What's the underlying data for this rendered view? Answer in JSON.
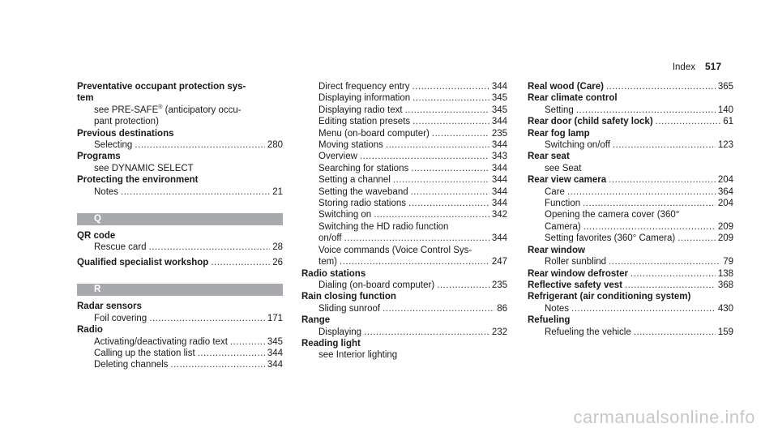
{
  "header": {
    "title": "Index",
    "page": "517"
  },
  "col1": {
    "pre1_a": "Preventative occupant protection sys-",
    "pre1_b": "tem",
    "pre1_s1": "see PRE-SAFE",
    "pre1_s1_reg": "®",
    "pre1_s1b": " (anticipatory occu-",
    "pre1_s2": "pant protection)",
    "prev_dest": "Previous destinations",
    "prev_sel": "Selecting",
    "prev_sel_p": "280",
    "programs": "Programs",
    "programs_see": "see DYNAMIC SELECT",
    "protect": "Protecting the environment",
    "protect_notes": "Notes",
    "protect_notes_p": "21",
    "letter_q": "Q",
    "qr": "QR code",
    "qr_rescue": "Rescue card",
    "qr_rescue_p": "28",
    "qual": "Qualified specialist workshop",
    "qual_p": "26",
    "letter_r": "R",
    "radar": "Radar sensors",
    "radar_foil": "Foil covering",
    "radar_foil_p": "171",
    "radio": "Radio",
    "radio_act": "Activating/deactivating radio text",
    "radio_act_p": "345",
    "radio_call": "Calling up the station list",
    "radio_call_p": "344",
    "radio_del": "Deleting channels",
    "radio_del_p": "344"
  },
  "col2": {
    "direct": "Direct frequency entry",
    "direct_p": "344",
    "disp_info": "Displaying information",
    "disp_info_p": "345",
    "disp_text": "Displaying radio text",
    "disp_text_p": "345",
    "edit": "Editing station presets",
    "edit_p": "344",
    "menu": "Menu (on-board computer)",
    "menu_p": "235",
    "moving": "Moving stations",
    "moving_p": "344",
    "overview": "Overview",
    "overview_p": "343",
    "search": "Searching for stations",
    "search_p": "344",
    "setchan": "Setting a channel",
    "setchan_p": "344",
    "setwave": "Setting the waveband",
    "setwave_p": "344",
    "store": "Storing radio stations",
    "store_p": "344",
    "switch": "Switching on",
    "switch_p": "342",
    "hd_a": "Switching the HD radio function",
    "hd_b": "on/off",
    "hd_p": "344",
    "voice_a": "Voice commands (Voice Control Sys-",
    "voice_b": "tem)",
    "voice_p": "247",
    "radio_st": "Radio stations",
    "radio_st_dial": "Dialing (on-board computer)",
    "radio_st_dial_p": "235",
    "rain": "Rain closing function",
    "rain_slide": "Sliding sunroof",
    "rain_slide_p": "86",
    "range": "Range",
    "range_disp": "Displaying",
    "range_disp_p": "232",
    "reading": "Reading light",
    "reading_see": "see Interior lighting"
  },
  "col3": {
    "wood": "Real wood (Care)",
    "wood_p": "365",
    "climate": "Rear climate control",
    "climate_set": "Setting",
    "climate_set_p": "140",
    "door": "Rear door (child safety lock)",
    "door_p": "61",
    "fog": "Rear fog lamp",
    "fog_sw": "Switching on/off",
    "fog_sw_p": "123",
    "seat": "Rear seat",
    "seat_see": "see Seat",
    "cam": "Rear view camera",
    "cam_p": "204",
    "cam_care": "Care",
    "cam_care_p": "364",
    "cam_func": "Function",
    "cam_func_p": "204",
    "cam_open_a": "Opening the camera cover (360°",
    "cam_open_b": "Camera)",
    "cam_open_p": "209",
    "cam_fav": "Setting favorites (360° Camera)",
    "cam_fav_p": "209",
    "window": "Rear window",
    "window_roller": "Roller sunblind",
    "window_roller_p": "79",
    "defrost": "Rear window defroster",
    "defrost_p": "138",
    "vest": "Reflective safety vest",
    "vest_p": "368",
    "refrig": "Refrigerant (air conditioning system)",
    "refrig_notes": "Notes",
    "refrig_notes_p": "430",
    "refuel": "Refueling",
    "refuel_veh": "Refueling the vehicle",
    "refuel_veh_p": "159"
  },
  "watermark": "carmanualsonline.info"
}
